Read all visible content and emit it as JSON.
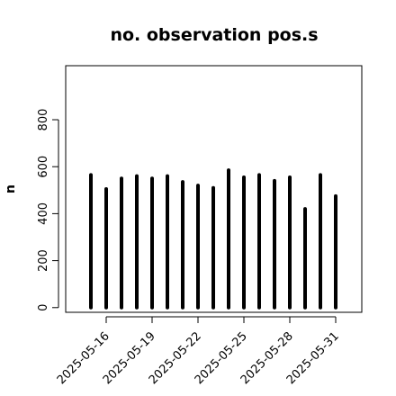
{
  "chart_data": {
    "type": "bar",
    "title": "no. observation pos.s",
    "xlabel": "",
    "ylabel": "n",
    "ylim": [
      -20,
      1030
    ],
    "yticks": [
      0,
      200,
      400,
      600,
      800
    ],
    "dates": [
      "2025-05-15",
      "2025-05-16",
      "2025-05-17",
      "2025-05-18",
      "2025-05-19",
      "2025-05-20",
      "2025-05-21",
      "2025-05-22",
      "2025-05-23",
      "2025-05-24",
      "2025-05-25",
      "2025-05-26",
      "2025-05-27",
      "2025-05-28",
      "2025-05-29",
      "2025-05-30",
      "2025-05-31"
    ],
    "values": [
      565,
      505,
      550,
      560,
      550,
      560,
      535,
      520,
      510,
      585,
      555,
      565,
      540,
      555,
      420,
      565,
      475
    ],
    "xticks": [
      {
        "label": "2025-05-16",
        "color": "#000000"
      },
      {
        "label": "2025-05-19",
        "color": "#000000"
      },
      {
        "label": "2025-05-22",
        "color": "#228B22"
      },
      {
        "label": "2025-05-25",
        "color": "#000000"
      },
      {
        "label": "2025-05-28",
        "color": "#000000"
      },
      {
        "label": "2025-05-31",
        "color": "#000000"
      }
    ],
    "grid": false,
    "colors": {
      "bars": "#000000",
      "highlight_tick": "#228B22"
    }
  }
}
